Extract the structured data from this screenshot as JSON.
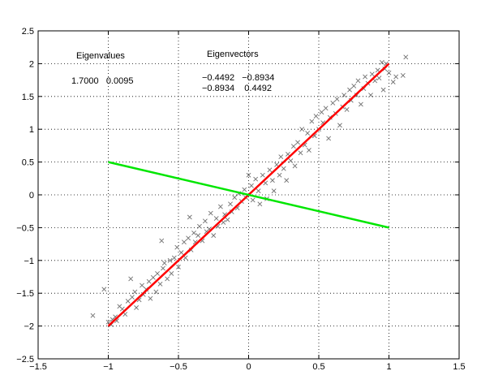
{
  "chart_data": {
    "type": "scatter",
    "xlim": [
      -1.5,
      1.5
    ],
    "ylim": [
      -2.5,
      2.5
    ],
    "xticks": [
      -1.5,
      -1,
      -0.5,
      0,
      0.5,
      1,
      1.5
    ],
    "yticks": [
      -2.5,
      -2,
      -1.5,
      -1,
      -0.5,
      0,
      0.5,
      1,
      1.5,
      2,
      2.5
    ],
    "xtick_labels": [
      "−1.5",
      "−1",
      "−0.5",
      "0",
      "0.5",
      "1",
      "1.5"
    ],
    "ytick_labels": [
      "−2.5",
      "−2",
      "−1.5",
      "−1",
      "−0.5",
      "0",
      "0.5",
      "1",
      "1.5",
      "2",
      "2.5"
    ],
    "grid": true,
    "grid_style": "dotted",
    "marker": "x",
    "marker_color": "#707070",
    "series": [
      {
        "values": [
          [
            -1.11,
            -1.84
          ],
          [
            -1.03,
            -1.44
          ],
          [
            -1.0,
            -1.94
          ],
          [
            -0.98,
            -1.98
          ],
          [
            -0.97,
            -1.9
          ],
          [
            -0.95,
            -1.86
          ],
          [
            -0.94,
            -1.92
          ],
          [
            -0.92,
            -1.7
          ],
          [
            -0.9,
            -1.74
          ],
          [
            -0.88,
            -1.82
          ],
          [
            -0.86,
            -1.62
          ],
          [
            -0.84,
            -1.28
          ],
          [
            -0.83,
            -1.56
          ],
          [
            -0.81,
            -1.48
          ],
          [
            -0.8,
            -1.72
          ],
          [
            -0.78,
            -1.6
          ],
          [
            -0.76,
            -1.38
          ],
          [
            -0.75,
            -1.52
          ],
          [
            -0.73,
            -1.44
          ],
          [
            -0.71,
            -1.32
          ],
          [
            -0.7,
            -1.58
          ],
          [
            -0.68,
            -1.26
          ],
          [
            -0.66,
            -1.48
          ],
          [
            -0.65,
            -1.2
          ],
          [
            -0.63,
            -1.36
          ],
          [
            -0.61,
            -1.12
          ],
          [
            -0.6,
            -1.04
          ],
          [
            -0.58,
            -1.28
          ],
          [
            -0.56,
            -1.0
          ],
          [
            -0.55,
            -1.2
          ],
          [
            -0.53,
            -0.96
          ],
          [
            -0.51,
            -0.8
          ],
          [
            -0.5,
            -1.1
          ],
          [
            -0.48,
            -0.88
          ],
          [
            -0.46,
            -0.72
          ],
          [
            -0.45,
            -0.96
          ],
          [
            -0.43,
            -0.66
          ],
          [
            -0.42,
            -0.34
          ],
          [
            -0.41,
            -0.84
          ],
          [
            -0.39,
            -0.58
          ],
          [
            -0.38,
            -0.72
          ],
          [
            -0.36,
            -0.62
          ],
          [
            -0.35,
            -0.48
          ],
          [
            -0.33,
            -0.7
          ],
          [
            -0.31,
            -0.4
          ],
          [
            -0.3,
            -0.56
          ],
          [
            -0.28,
            -0.52
          ],
          [
            -0.27,
            -0.28
          ],
          [
            -0.25,
            -0.62
          ],
          [
            -0.23,
            -0.36
          ],
          [
            -0.22,
            -0.48
          ],
          [
            -0.2,
            -0.18
          ],
          [
            -0.18,
            -0.42
          ],
          [
            -0.17,
            -0.3
          ],
          [
            -0.15,
            -0.38
          ],
          [
            -0.13,
            -0.14
          ],
          [
            -0.12,
            -0.26
          ],
          [
            -0.1,
            -0.04
          ],
          [
            -0.08,
            -0.2
          ],
          [
            -0.07,
            0.02
          ],
          [
            -0.05,
            -0.1
          ],
          [
            -0.03,
            0.08
          ],
          [
            -0.02,
            -0.04
          ],
          [
            0.0,
            0.3
          ],
          [
            0.02,
            0.14
          ],
          [
            0.03,
            -0.08
          ],
          [
            0.05,
            0.24
          ],
          [
            0.07,
            0.06
          ],
          [
            0.08,
            -0.14
          ],
          [
            0.1,
            0.3
          ],
          [
            0.12,
            0.18
          ],
          [
            0.13,
            -0.06
          ],
          [
            0.15,
            0.38
          ],
          [
            0.17,
            0.22
          ],
          [
            0.18,
            0.06
          ],
          [
            0.2,
            0.46
          ],
          [
            0.22,
            0.3
          ],
          [
            0.23,
            0.58
          ],
          [
            0.25,
            0.4
          ],
          [
            0.27,
            0.22
          ],
          [
            0.28,
            0.62
          ],
          [
            0.3,
            0.52
          ],
          [
            0.32,
            0.74
          ],
          [
            0.33,
            0.44
          ],
          [
            0.35,
            0.8
          ],
          [
            0.37,
            0.64
          ],
          [
            0.38,
            1.0
          ],
          [
            0.4,
            0.76
          ],
          [
            0.42,
            0.94
          ],
          [
            0.43,
            0.68
          ],
          [
            0.45,
            1.12
          ],
          [
            0.47,
            0.9
          ],
          [
            0.48,
            1.2
          ],
          [
            0.5,
            1.0
          ],
          [
            0.52,
            1.26
          ],
          [
            0.53,
            1.1
          ],
          [
            0.55,
            1.32
          ],
          [
            0.57,
            0.86
          ],
          [
            0.58,
            1.18
          ],
          [
            0.6,
            1.4
          ],
          [
            0.62,
            1.24
          ],
          [
            0.63,
            1.46
          ],
          [
            0.65,
            1.06
          ],
          [
            0.67,
            1.34
          ],
          [
            0.68,
            1.52
          ],
          [
            0.7,
            1.3
          ],
          [
            0.72,
            1.6
          ],
          [
            0.73,
            1.44
          ],
          [
            0.75,
            1.66
          ],
          [
            0.77,
            1.52
          ],
          [
            0.78,
            1.74
          ],
          [
            0.8,
            1.38
          ],
          [
            0.82,
            1.62
          ],
          [
            0.83,
            1.8
          ],
          [
            0.85,
            1.7
          ],
          [
            0.87,
            1.52
          ],
          [
            0.88,
            1.84
          ],
          [
            0.9,
            1.74
          ],
          [
            0.92,
            1.9
          ],
          [
            0.93,
            1.78
          ],
          [
            0.95,
            2.02
          ],
          [
            0.96,
            1.6
          ],
          [
            0.97,
            1.92
          ],
          [
            0.98,
            2.0
          ],
          [
            1.0,
            1.86
          ],
          [
            1.03,
            1.72
          ],
          [
            1.05,
            1.8
          ],
          [
            1.12,
            2.1
          ],
          [
            1.1,
            1.82
          ],
          [
            -0.62,
            -0.7
          ]
        ]
      }
    ],
    "lines": [
      {
        "x": [
          -1,
          1
        ],
        "y": [
          -2,
          2
        ],
        "color": "#ff0000",
        "width": 2.5
      },
      {
        "x": [
          -1,
          1
        ],
        "y": [
          0.5,
          -0.5
        ],
        "color": "#00e600",
        "width": 2.5
      }
    ],
    "annotations": {
      "eigenvalues_label": "Eigenvalues",
      "eigenvalues_values": "1.7000   0.0095",
      "eigenvectors_label": "Eigenvectors",
      "eigenvectors_row1": "−0.4492   −0.8934",
      "eigenvectors_row2": "−0.8934    0.4492"
    },
    "colors": {
      "axis": "#000000",
      "grid": "#000000",
      "background": "#ffffff"
    }
  }
}
